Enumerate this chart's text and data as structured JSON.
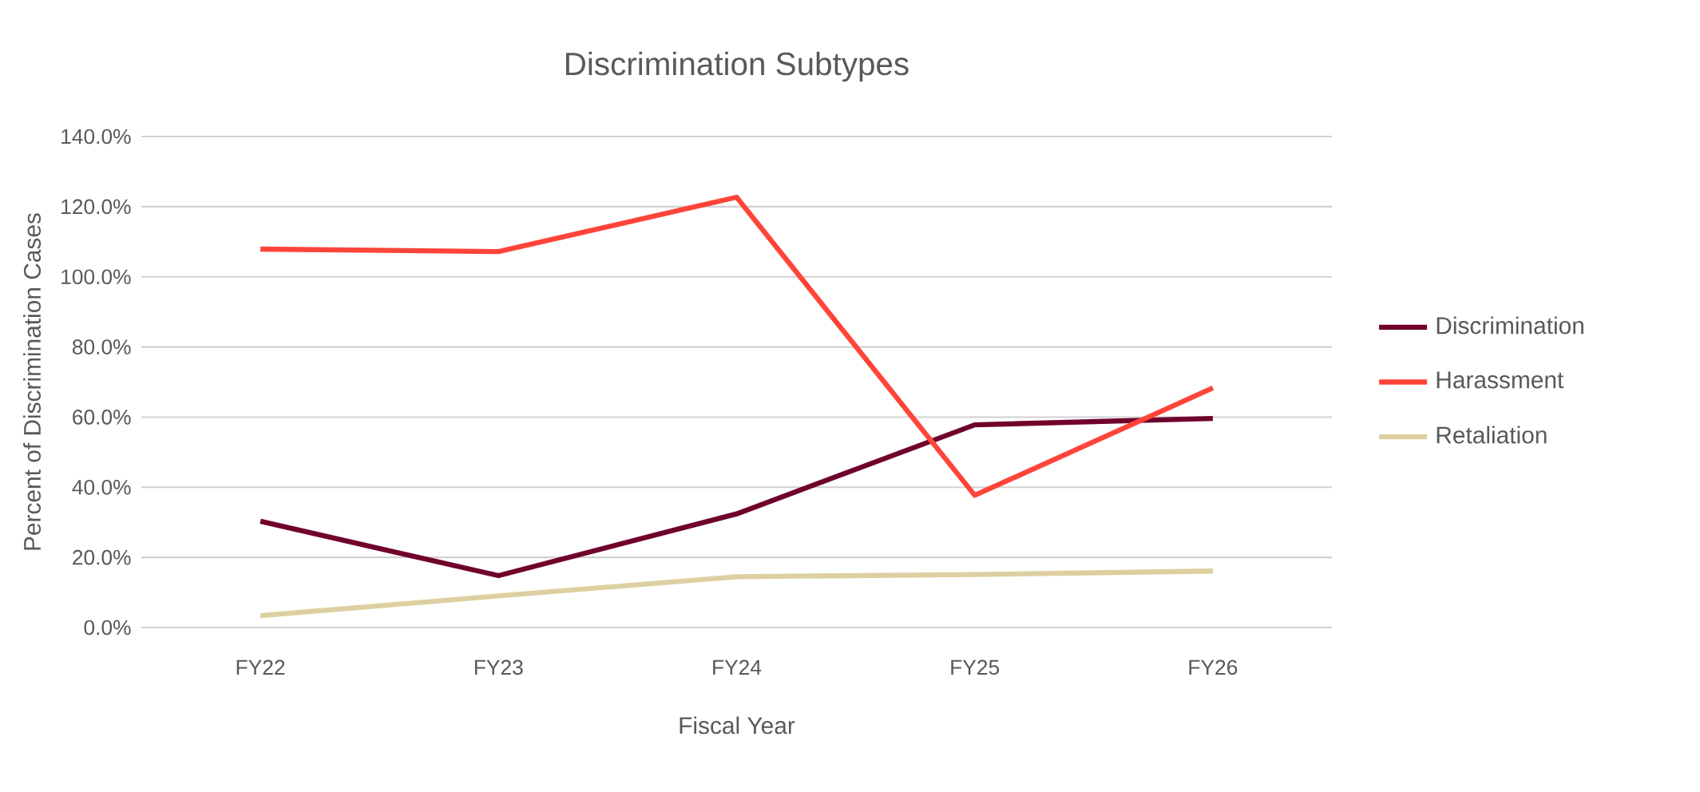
{
  "chart_data": {
    "type": "line",
    "title": "Discrimination Subtypes",
    "xlabel": "Fiscal Year",
    "ylabel": "Percent of Discrimination Cases",
    "categories": [
      "FY22",
      "FY23",
      "FY24",
      "FY25",
      "FY26"
    ],
    "series": [
      {
        "name": "Discrimination",
        "color": "#70012c",
        "values": [
          30.3,
          14.8,
          32.4,
          57.8,
          59.6
        ]
      },
      {
        "name": "Harassment",
        "color": "#ff443a",
        "values": [
          107.9,
          107.2,
          122.7,
          37.7,
          68.3
        ]
      },
      {
        "name": "Retaliation",
        "color": "#ddd0a0",
        "values": [
          3.4,
          9.0,
          14.5,
          15.1,
          16.1
        ]
      }
    ],
    "ylim": [
      0,
      140
    ],
    "yticks": [
      {
        "value": 0,
        "label": "0.0%"
      },
      {
        "value": 20,
        "label": "20.0%"
      },
      {
        "value": 40,
        "label": "40.0%"
      },
      {
        "value": 60,
        "label": "60.0%"
      },
      {
        "value": 80,
        "label": "80.0%"
      },
      {
        "value": 100,
        "label": "100.0%"
      },
      {
        "value": 120,
        "label": "120.0%"
      },
      {
        "value": 140,
        "label": "140.0%"
      }
    ],
    "grid": "y",
    "legend": "right",
    "marker": "none",
    "line_style": "solid"
  }
}
